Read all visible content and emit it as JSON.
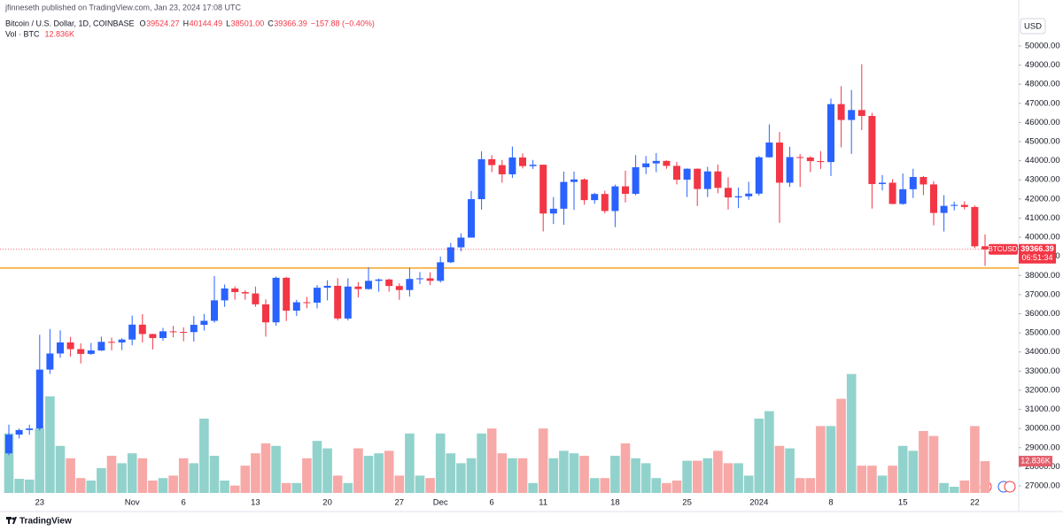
{
  "header": {
    "publisher": "jfinneseth published on TradingView.com, Jan 23, 2024 17:08 UTC",
    "symbol": "Bitcoin / U.S. Dollar, 1D, COINBASE",
    "ohlc": [
      {
        "key": "O",
        "text": "39524.27"
      },
      {
        "key": "H",
        "text": "40144.49"
      },
      {
        "key": "L",
        "text": "38501.00"
      },
      {
        "key": "C",
        "text": "39366.39"
      }
    ],
    "change": "−157.88 (−0.40%)",
    "volume_title": "Vol · BTC",
    "volume_text": "12.836K"
  },
  "chart_data": {
    "type": "candlestick",
    "categories": [
      null,
      null,
      null,
      "23",
      null,
      null,
      null,
      null,
      null,
      null,
      null,
      null,
      "Nov",
      null,
      null,
      null,
      null,
      "6",
      null,
      null,
      null,
      null,
      null,
      null,
      "13",
      null,
      null,
      null,
      null,
      null,
      null,
      "20",
      null,
      null,
      null,
      null,
      null,
      null,
      "27",
      null,
      null,
      null,
      "Dec",
      null,
      null,
      null,
      null,
      "6",
      null,
      null,
      null,
      null,
      "11",
      null,
      null,
      null,
      null,
      null,
      null,
      "18",
      null,
      null,
      null,
      null,
      null,
      null,
      "25",
      null,
      null,
      null,
      null,
      null,
      null,
      "2024",
      null,
      null,
      null,
      null,
      null,
      null,
      "8",
      null,
      null,
      null,
      null,
      null,
      null,
      "15",
      null,
      null,
      null,
      null,
      null,
      null,
      "22",
      null
    ],
    "open": [
      28700,
      29680,
      29920,
      30000,
      33080,
      33920,
      34500,
      34150,
      33900,
      34080,
      34530,
      34500,
      34650,
      35430,
      34940,
      34730,
      35080,
      35050,
      35040,
      35420,
      35630,
      36700,
      37320,
      37130,
      37060,
      36490,
      35550,
      37880,
      36160,
      36600,
      36580,
      37360,
      37460,
      35750,
      37420,
      37290,
      37720,
      37790,
      37450,
      37240,
      37820,
      37850,
      37720,
      38690,
      39470,
      39980,
      41990,
      44080,
      43770,
      43290,
      44170,
      43720,
      43790,
      41240,
      41490,
      42890,
      43020,
      41940,
      42260,
      41370,
      42660,
      42270,
      43660,
      43860,
      43990,
      43730,
      43010,
      43580,
      42520,
      43440,
      42580,
      42080,
      42140,
      42280,
      44180,
      44950,
      42850,
      44190,
      44170,
      43980,
      43930,
      46960,
      46130,
      46650,
      46340,
      42780,
      42850,
      41740,
      42510,
      43150,
      42760,
      41270,
      41640,
      41690,
      41580,
      39524.27
    ],
    "high": [
      30200,
      30000,
      30200,
      34900,
      35200,
      35130,
      34790,
      34450,
      34470,
      34800,
      34750,
      34720,
      35900,
      35980,
      34950,
      35260,
      35370,
      35290,
      35880,
      35990,
      37970,
      37530,
      37430,
      37230,
      37420,
      36750,
      37950,
      37930,
      36730,
      36880,
      37500,
      37750,
      37860,
      37850,
      37650,
      38430,
      37840,
      37830,
      37600,
      38400,
      38180,
      38170,
      38990,
      39700,
      40200,
      42420,
      44490,
      44290,
      44040,
      44740,
      44380,
      44040,
      43790,
      42100,
      43430,
      43430,
      43080,
      42320,
      42430,
      42750,
      43480,
      44290,
      44250,
      44400,
      44020,
      43940,
      43600,
      43600,
      43680,
      43800,
      43130,
      42600,
      42900,
      44250,
      45900,
      45500,
      44730,
      44350,
      44230,
      44500,
      47250,
      47900,
      47700,
      49050,
      46500,
      43250,
      43040,
      43330,
      43580,
      43200,
      42930,
      42200,
      41860,
      41880,
      41660,
      40144.49
    ],
    "low": [
      28600,
      29480,
      29670,
      29900,
      32850,
      33700,
      33760,
      33400,
      33850,
      34050,
      34090,
      34100,
      34350,
      34500,
      34130,
      34590,
      34770,
      34560,
      34550,
      35120,
      35530,
      36360,
      36730,
      36730,
      36360,
      34800,
      35370,
      35620,
      35880,
      36290,
      36280,
      36700,
      35650,
      35650,
      36850,
      37260,
      37150,
      37150,
      36730,
      36900,
      37550,
      37500,
      37630,
      38650,
      39260,
      39980,
      41440,
      43400,
      42850,
      43100,
      43600,
      43570,
      40300,
      40690,
      40650,
      41430,
      41700,
      41750,
      41250,
      40530,
      41820,
      42190,
      43300,
      43400,
      43580,
      42760,
      42100,
      41630,
      42100,
      42300,
      41450,
      41520,
      41960,
      42180,
      44160,
      40750,
      42630,
      42630,
      43400,
      43570,
      43200,
      44700,
      44360,
      45600,
      41500,
      42450,
      41720,
      41700,
      42050,
      42200,
      40620,
      40300,
      41400,
      41450,
      39430,
      38501.0
    ],
    "close": [
      29680,
      29920,
      30000,
      33080,
      33920,
      34500,
      34150,
      33900,
      34080,
      34530,
      34500,
      34650,
      35430,
      34940,
      34730,
      35080,
      35050,
      35040,
      35420,
      35630,
      36700,
      37320,
      37130,
      37060,
      36490,
      35550,
      37880,
      36160,
      36600,
      36580,
      37360,
      37460,
      35750,
      37420,
      37290,
      37720,
      37790,
      37450,
      37240,
      37820,
      37850,
      37720,
      38690,
      39470,
      39980,
      41990,
      44080,
      43770,
      43290,
      44170,
      43720,
      43790,
      41240,
      41490,
      42890,
      43020,
      41940,
      42260,
      41370,
      42660,
      42270,
      43660,
      43860,
      43990,
      43730,
      43010,
      43580,
      42520,
      43440,
      42580,
      42080,
      42140,
      42280,
      44180,
      44950,
      42850,
      44190,
      44170,
      43980,
      43930,
      46960,
      46130,
      46650,
      46340,
      42780,
      42850,
      41740,
      42510,
      43150,
      42760,
      41270,
      41640,
      41690,
      41580,
      39524.27,
      39366.39
    ],
    "volume": [
      24,
      5.7,
      5.4,
      26,
      39,
      19,
      14,
      6,
      5,
      10,
      15,
      12,
      16,
      14,
      5,
      6,
      7,
      14,
      12,
      30,
      15,
      5,
      3,
      11,
      16,
      20,
      19,
      4,
      4,
      14,
      21,
      18,
      7,
      4,
      18,
      15,
      16,
      17,
      7,
      24,
      7,
      6,
      24,
      16,
      12,
      14,
      24,
      26,
      16,
      14,
      14,
      4,
      26,
      14,
      17,
      16,
      15,
      6,
      6,
      15,
      20,
      14,
      12,
      6,
      4,
      5,
      13,
      13,
      14,
      17,
      12,
      12,
      7,
      30,
      33,
      19,
      18,
      6,
      6,
      27,
      27,
      38,
      48,
      11,
      11,
      7,
      11,
      19,
      17,
      25,
      23,
      4,
      2.5,
      5,
      27,
      12.836
    ],
    "volume_label": "12.836K",
    "ylim": [
      26260,
      51570
    ],
    "yticks": [
      {
        "value": 27000,
        "label": "27000.00"
      },
      {
        "value": 28000,
        "label": "28000.00"
      },
      {
        "value": 29000,
        "label": "29000.00"
      },
      {
        "value": 30000,
        "label": "30000.00"
      },
      {
        "value": 31000,
        "label": "31000.00"
      },
      {
        "value": 32000,
        "label": "32000.00"
      },
      {
        "value": 33000,
        "label": "33000.00"
      },
      {
        "value": 34000,
        "label": "34000.00"
      },
      {
        "value": 35000,
        "label": "35000.00"
      },
      {
        "value": 36000,
        "label": "36000.00"
      },
      {
        "value": 37000,
        "label": "37000.00"
      },
      {
        "value": 38000,
        "label": "38000.00"
      },
      {
        "value": 39000,
        "label": "39000.00"
      },
      {
        "value": 40000,
        "label": "40000.00"
      },
      {
        "value": 41000,
        "label": "41000.00"
      },
      {
        "value": 42000,
        "label": "42000.00"
      },
      {
        "value": 43000,
        "label": "43000.00"
      },
      {
        "value": 44000,
        "label": "44000.00"
      },
      {
        "value": 45000,
        "label": "45000.00"
      },
      {
        "value": 46000,
        "label": "46000.00"
      },
      {
        "value": 47000,
        "label": "47000.00"
      },
      {
        "value": 48000,
        "label": "48000.00"
      },
      {
        "value": 49000,
        "label": "49000.00"
      },
      {
        "value": 50000,
        "label": "50000.00"
      }
    ],
    "y2lim": [
      0,
      50
    ],
    "grid": false,
    "currency": "USD",
    "price_tag": "BTCUSD",
    "countdown": "06:51:34",
    "up_color": "#2962ff",
    "down_color": "#f23645",
    "volume_up_color": "#92d2cc",
    "volume_down_color": "#f7a9a7",
    "hline": {
      "value": 38390,
      "color": "#f5a623"
    },
    "footer": "TradingView"
  }
}
